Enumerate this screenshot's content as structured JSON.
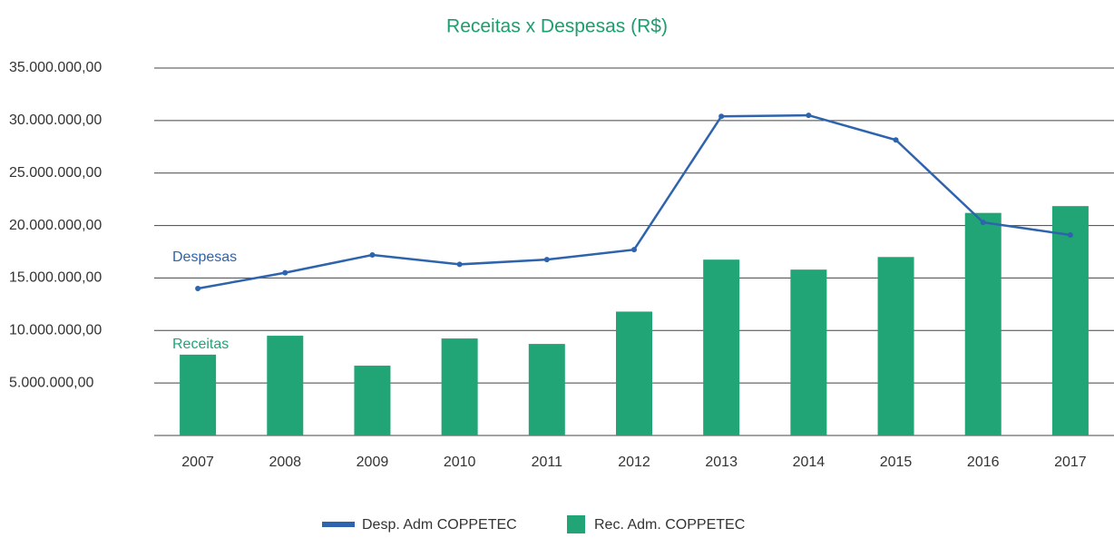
{
  "chart_data": {
    "type": "bar",
    "title": "Receitas x Despesas (R$)",
    "categories": [
      "2007",
      "2008",
      "2009",
      "2010",
      "2011",
      "2012",
      "2013",
      "2014",
      "2015",
      "2016",
      "2017"
    ],
    "series": [
      {
        "name": "Desp. Adm COPPETEC",
        "type": "line",
        "color": "#2e63ad",
        "values": [
          14000000,
          15500000,
          17200000,
          16300000,
          16750000,
          17700000,
          30400000,
          30500000,
          28150000,
          20300000,
          19100000
        ]
      },
      {
        "name": "Rec. Adm. COPPETEC",
        "type": "bar",
        "color": "#21a576",
        "values": [
          7700000,
          9500000,
          6650000,
          9240000,
          8720000,
          11800000,
          16750000,
          15800000,
          17000000,
          21200000,
          21850000
        ]
      }
    ],
    "annotations": [
      "Despesas",
      "Receitas"
    ],
    "ylim": [
      0,
      35000000
    ],
    "yticks": [
      {
        "value": 5000000,
        "label": "5.000.000,00"
      },
      {
        "value": 10000000,
        "label": "10.000.000,00"
      },
      {
        "value": 15000000,
        "label": "15.000.000,00"
      },
      {
        "value": 20000000,
        "label": "20.000.000,00"
      },
      {
        "value": 25000000,
        "label": "25.000.000,00"
      },
      {
        "value": 30000000,
        "label": "30.000.000,00"
      },
      {
        "value": 35000000,
        "label": "35.000.000,00"
      }
    ],
    "grid": true
  }
}
